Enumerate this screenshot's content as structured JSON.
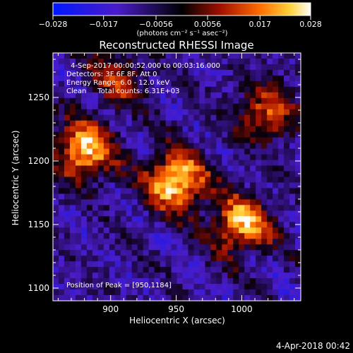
{
  "chart_data": {
    "type": "heatmap",
    "title": "Reconstructed RHESSI Image",
    "xlabel": "Heliocentric X (arcsec)",
    "ylabel": "Heliocentric Y (arcsec)",
    "xlim": [
      856,
      1045
    ],
    "ylim": [
      1090,
      1285
    ],
    "x_ticks": [
      900,
      950,
      1000
    ],
    "y_ticks": [
      1100,
      1150,
      1200,
      1250
    ],
    "x_tick_labels": [
      "900",
      "950",
      "1000"
    ],
    "y_tick_labels": [
      "1100",
      "1150",
      "1200",
      "1250"
    ],
    "colorbar": {
      "range": [
        -0.028,
        0.028
      ],
      "ticks": [
        -0.028,
        -0.017,
        -0.0056,
        0.0056,
        0.017,
        0.028
      ],
      "tick_labels": [
        "−0.028",
        "−0.017",
        "−0.0056",
        "0.0056",
        "0.017",
        "0.028"
      ],
      "units": "(photons cm⁻² s⁻¹ asec⁻²)"
    },
    "annotations": [
      "4-Sep-2017 00:00:52.000 to 00:03:16.000",
      "Detectors: 3F 6F 8F, Att 0",
      "Energy Range: 6.0 - 12.0 keV",
      "Clean     Total counts: 6.31E+03"
    ],
    "peak_label": "Position of Peak = [950,1184]",
    "peak": [
      950,
      1184
    ],
    "sources": [
      {
        "x": 950,
        "y": 1184,
        "amplitude": 1.0
      },
      {
        "x": 880,
        "y": 1208,
        "amplitude": 0.9
      },
      {
        "x": 1000,
        "y": 1150,
        "amplitude": 0.85
      },
      {
        "x": 1020,
        "y": 1238,
        "amplitude": 0.6
      },
      {
        "x": 905,
        "y": 1265,
        "amplitude": 0.45
      }
    ]
  },
  "footer": {
    "date": "4-Apr-2018 00:42"
  },
  "colors": {
    "low": "#0a2cff",
    "mid": "#000000",
    "high": "#ffffff"
  }
}
